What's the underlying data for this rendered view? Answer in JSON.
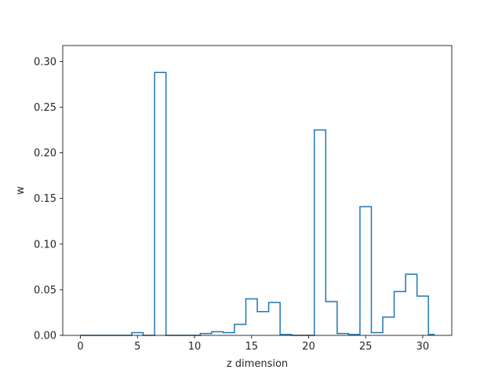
{
  "chart_data": {
    "type": "line",
    "style": "step",
    "title": "",
    "xlabel": "z dimension",
    "ylabel": "w",
    "xlim": [
      -1.55,
      32.55
    ],
    "ylim": [
      0,
      0.3175
    ],
    "xticks": [
      0,
      5,
      10,
      15,
      20,
      25,
      30
    ],
    "xtick_labels": [
      "0",
      "5",
      "10",
      "15",
      "20",
      "25",
      "30"
    ],
    "yticks": [
      0.0,
      0.05,
      0.1,
      0.15,
      0.2,
      0.25,
      0.3
    ],
    "ytick_labels": [
      "0.00",
      "0.05",
      "0.10",
      "0.15",
      "0.20",
      "0.25",
      "0.30"
    ],
    "grid": false,
    "legend": "none",
    "color": "#1f77b4",
    "series": [
      {
        "x": [
          0,
          1,
          2,
          3,
          4,
          5,
          6,
          7,
          8,
          9,
          10,
          11,
          12,
          13,
          14,
          15,
          16,
          17,
          18,
          19,
          20,
          21,
          22,
          23,
          24,
          25,
          26,
          27,
          28,
          29,
          30,
          31
        ],
        "values": [
          0.0,
          0.0,
          0.0,
          0.0,
          0.0,
          0.003,
          0.0,
          0.288,
          0.0,
          0.0,
          0.0,
          0.002,
          0.004,
          0.003,
          0.012,
          0.04,
          0.026,
          0.036,
          0.001,
          0.0,
          0.0,
          0.225,
          0.037,
          0.002,
          0.001,
          0.141,
          0.003,
          0.02,
          0.048,
          0.067,
          0.043,
          0.001
        ]
      }
    ]
  }
}
